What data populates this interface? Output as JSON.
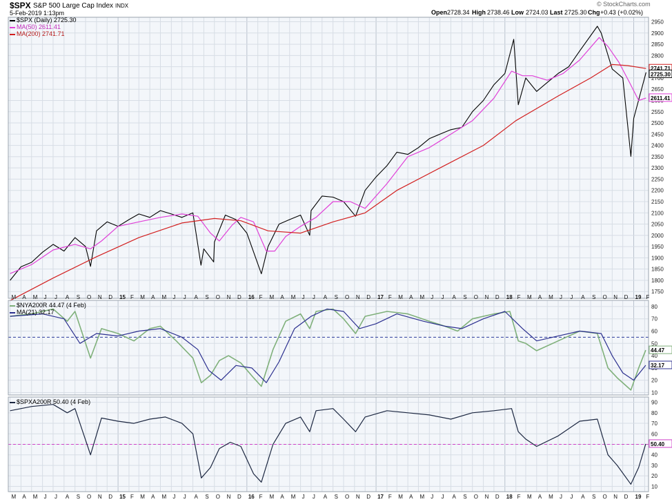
{
  "header": {
    "symbol": "$SPX",
    "name": "S&P 500 Large Cap Index",
    "exchange": "INDX",
    "date": "5-Feb-2019 1:13pm",
    "open_label": "Open",
    "open": "2728.34",
    "high_label": "High",
    "high": "2738.46",
    "low_label": "Low",
    "low": "2724.03",
    "last_label": "Last",
    "last": "2725.30",
    "chg_label": "Chg",
    "chg": "+0.43 (+0.02%)",
    "watermark": "© StockCharts.com"
  },
  "colors": {
    "price": "#000000",
    "ma50": "#e040d8",
    "ma200": "#d21f1f",
    "nya": "#7fb07a",
    "nya_ma": "#2b2f8f",
    "spxa": "#1b2640",
    "grid": "#d7dde5",
    "frame": "#9aa3ad",
    "panel_bg": "#f3f6fa"
  },
  "chart_data": [
    {
      "type": "line",
      "legend": [
        "$SPX (Daily) 2725.30",
        "MA(50) 2611.41",
        "MA(200) 2741.71"
      ],
      "legend_position": "top-left",
      "x_ticks": [
        "M",
        "A",
        "M",
        "J",
        "J",
        "A",
        "S",
        "O",
        "N",
        "D",
        "15",
        "F",
        "M",
        "A",
        "M",
        "J",
        "J",
        "A",
        "S",
        "O",
        "N",
        "D",
        "16",
        "F",
        "M",
        "A",
        "M",
        "J",
        "J",
        "A",
        "S",
        "O",
        "N",
        "D",
        "17",
        "F",
        "M",
        "A",
        "M",
        "J",
        "J",
        "A",
        "S",
        "O",
        "N",
        "D",
        "18",
        "F",
        "M",
        "A",
        "M",
        "J",
        "J",
        "A",
        "S",
        "O",
        "N",
        "D",
        "19",
        "F"
      ],
      "y_ticks": [
        1750,
        1800,
        1850,
        1900,
        1950,
        2000,
        2050,
        2100,
        2150,
        2200,
        2250,
        2300,
        2350,
        2400,
        2450,
        2500,
        2550,
        2600,
        2650,
        2700,
        2750,
        2800,
        2850,
        2900,
        2950
      ],
      "ylim": [
        1720,
        2970
      ],
      "grid": true,
      "value_labels": [
        "2741.71",
        "2725.30",
        "2611.41"
      ],
      "series": [
        {
          "name": "$SPX (Daily)",
          "x": [
            "2014-03-01",
            "2014-04-01",
            "2014-05-01",
            "2014-06-01",
            "2014-07-01",
            "2014-08-01",
            "2014-09-01",
            "2014-10-01",
            "2014-10-15",
            "2014-11-01",
            "2014-12-01",
            "2015-01-01",
            "2015-02-01",
            "2015-03-01",
            "2015-04-01",
            "2015-05-01",
            "2015-06-01",
            "2015-07-01",
            "2015-08-01",
            "2015-08-24",
            "2015-09-01",
            "2015-09-29",
            "2015-10-01",
            "2015-11-01",
            "2015-12-01",
            "2016-01-01",
            "2016-02-11",
            "2016-03-01",
            "2016-04-01",
            "2016-05-01",
            "2016-06-01",
            "2016-06-27",
            "2016-07-01",
            "2016-08-01",
            "2016-09-01",
            "2016-10-01",
            "2016-11-04",
            "2016-12-01",
            "2017-01-01",
            "2017-02-01",
            "2017-03-01",
            "2017-04-01",
            "2017-05-01",
            "2017-06-01",
            "2017-07-01",
            "2017-08-01",
            "2017-09-01",
            "2017-10-01",
            "2017-11-01",
            "2017-12-01",
            "2018-01-01",
            "2018-01-26",
            "2018-02-08",
            "2018-03-01",
            "2018-04-01",
            "2018-05-01",
            "2018-06-01",
            "2018-07-01",
            "2018-08-01",
            "2018-09-20",
            "2018-10-01",
            "2018-11-01",
            "2018-12-01",
            "2018-12-24",
            "2019-01-01",
            "2019-02-05"
          ],
          "y": [
            1800,
            1860,
            1880,
            1925,
            1960,
            1930,
            1990,
            1950,
            1862,
            2020,
            2060,
            2040,
            2070,
            2095,
            2080,
            2110,
            2095,
            2080,
            2100,
            1867,
            1940,
            1882,
            1970,
            2090,
            2070,
            2010,
            1829,
            1950,
            2050,
            2070,
            2090,
            2000,
            2110,
            2175,
            2170,
            2150,
            2085,
            2200,
            2260,
            2310,
            2370,
            2360,
            2390,
            2430,
            2450,
            2470,
            2480,
            2550,
            2600,
            2670,
            2720,
            2872,
            2581,
            2700,
            2640,
            2680,
            2720,
            2750,
            2820,
            2930,
            2900,
            2740,
            2700,
            2351,
            2520,
            2725
          ]
        },
        {
          "name": "MA(50)",
          "x": [
            "2014-03-01",
            "2014-05-01",
            "2014-07-01",
            "2014-09-01",
            "2014-10-15",
            "2014-11-15",
            "2015-01-01",
            "2015-03-01",
            "2015-05-01",
            "2015-07-01",
            "2015-08-15",
            "2015-09-20",
            "2015-10-15",
            "2015-11-20",
            "2015-12-15",
            "2016-01-20",
            "2016-02-25",
            "2016-03-20",
            "2016-04-20",
            "2016-06-01",
            "2016-07-15",
            "2016-09-01",
            "2016-10-20",
            "2016-12-01",
            "2017-02-01",
            "2017-04-01",
            "2017-06-01",
            "2017-08-01",
            "2017-10-01",
            "2017-12-01",
            "2018-01-20",
            "2018-02-20",
            "2018-03-20",
            "2018-05-01",
            "2018-06-15",
            "2018-08-01",
            "2018-09-25",
            "2018-10-20",
            "2018-11-20",
            "2018-12-20",
            "2019-01-15",
            "2019-02-05"
          ],
          "y": [
            1830,
            1870,
            1935,
            1960,
            1940,
            1975,
            2040,
            2060,
            2080,
            2095,
            2085,
            2010,
            1975,
            2045,
            2080,
            2060,
            1930,
            1930,
            1995,
            2040,
            2080,
            2150,
            2150,
            2120,
            2230,
            2350,
            2390,
            2450,
            2510,
            2610,
            2730,
            2710,
            2710,
            2690,
            2720,
            2780,
            2880,
            2840,
            2770,
            2680,
            2600,
            2611
          ]
        },
        {
          "name": "MA(200)",
          "x": [
            "2014-03-01",
            "2014-07-01",
            "2014-11-01",
            "2015-03-01",
            "2015-07-01",
            "2015-10-01",
            "2015-12-15",
            "2016-03-01",
            "2016-06-01",
            "2016-09-01",
            "2016-12-01",
            "2017-03-01",
            "2017-07-01",
            "2017-11-01",
            "2018-02-01",
            "2018-06-01",
            "2018-09-01",
            "2018-11-01",
            "2018-12-15",
            "2019-02-05"
          ],
          "y": [
            1710,
            1810,
            1905,
            1990,
            2055,
            2075,
            2065,
            2020,
            2010,
            2060,
            2100,
            2200,
            2300,
            2400,
            2510,
            2620,
            2700,
            2760,
            2755,
            2742
          ]
        }
      ]
    },
    {
      "type": "line",
      "legend": [
        "$NYA200R 44.47 (4 Feb)",
        "MA(21) 32.17"
      ],
      "legend_position": "top-left",
      "y_ticks": [
        10,
        20,
        30,
        40,
        50,
        60,
        70,
        80
      ],
      "ylim": [
        8,
        85
      ],
      "reference_line": 55,
      "value_labels": [
        "44.47",
        "32.17"
      ],
      "series": [
        {
          "name": "$NYA200R",
          "x": [
            "2014-03-01",
            "2014-05-01",
            "2014-07-01",
            "2014-08-10",
            "2014-09-01",
            "2014-10-15",
            "2014-11-15",
            "2015-01-01",
            "2015-02-15",
            "2015-04-01",
            "2015-05-01",
            "2015-06-15",
            "2015-08-01",
            "2015-08-25",
            "2015-09-20",
            "2015-10-15",
            "2015-11-10",
            "2015-12-15",
            "2016-01-20",
            "2016-02-11",
            "2016-03-15",
            "2016-04-20",
            "2016-06-01",
            "2016-06-27",
            "2016-07-15",
            "2016-09-01",
            "2016-10-01",
            "2016-11-04",
            "2016-12-01",
            "2017-02-01",
            "2017-04-01",
            "2017-06-01",
            "2017-07-15",
            "2017-08-20",
            "2017-10-01",
            "2017-12-01",
            "2018-01-15",
            "2018-02-08",
            "2018-03-01",
            "2018-04-01",
            "2018-06-01",
            "2018-08-01",
            "2018-09-20",
            "2018-10-20",
            "2018-11-15",
            "2018-12-24",
            "2019-01-15",
            "2019-02-04"
          ],
          "y": [
            72,
            74,
            78,
            68,
            76,
            38,
            62,
            58,
            52,
            62,
            64,
            52,
            38,
            18,
            24,
            36,
            40,
            34,
            22,
            15,
            45,
            68,
            74,
            62,
            76,
            78,
            70,
            58,
            72,
            76,
            74,
            68,
            64,
            60,
            70,
            74,
            76,
            52,
            50,
            44,
            52,
            60,
            58,
            30,
            22,
            12,
            30,
            44.47
          ]
        },
        {
          "name": "MA(21)",
          "x": [
            "2014-03-01",
            "2014-06-01",
            "2014-08-01",
            "2014-09-15",
            "2014-11-01",
            "2015-01-01",
            "2015-03-01",
            "2015-05-01",
            "2015-07-01",
            "2015-08-15",
            "2015-09-15",
            "2015-10-20",
            "2015-12-01",
            "2016-01-15",
            "2016-02-25",
            "2016-04-01",
            "2016-05-15",
            "2016-07-01",
            "2016-08-15",
            "2016-10-01",
            "2016-11-15",
            "2017-01-01",
            "2017-03-01",
            "2017-05-15",
            "2017-07-15",
            "2017-09-01",
            "2017-11-01",
            "2018-01-01",
            "2018-02-20",
            "2018-04-01",
            "2018-06-01",
            "2018-08-01",
            "2018-10-01",
            "2018-11-01",
            "2018-12-01",
            "2019-01-01",
            "2019-02-04"
          ],
          "y": [
            72,
            74,
            70,
            50,
            58,
            56,
            60,
            62,
            55,
            45,
            28,
            20,
            32,
            30,
            18,
            35,
            62,
            72,
            78,
            76,
            62,
            66,
            74,
            68,
            64,
            62,
            70,
            76,
            62,
            52,
            56,
            60,
            58,
            40,
            26,
            20,
            32.17
          ]
        }
      ]
    },
    {
      "type": "line",
      "legend": [
        "$SPXA200R 50.40 (4 Feb)"
      ],
      "legend_position": "top-left",
      "y_ticks": [
        10,
        20,
        30,
        40,
        50,
        60,
        70,
        80,
        90
      ],
      "ylim": [
        5,
        95
      ],
      "reference_line": 50,
      "value_labels": [
        "50.40"
      ],
      "series": [
        {
          "name": "$SPXA200R",
          "x": [
            "2014-03-01",
            "2014-05-01",
            "2014-07-01",
            "2014-08-10",
            "2014-09-01",
            "2014-10-15",
            "2014-11-15",
            "2015-01-01",
            "2015-02-15",
            "2015-04-01",
            "2015-05-15",
            "2015-07-01",
            "2015-08-01",
            "2015-08-25",
            "2015-09-20",
            "2015-10-15",
            "2015-11-15",
            "2015-12-15",
            "2016-01-20",
            "2016-02-11",
            "2016-03-15",
            "2016-04-20",
            "2016-06-01",
            "2016-06-27",
            "2016-07-15",
            "2016-09-01",
            "2016-10-01",
            "2016-11-04",
            "2016-12-01",
            "2017-02-01",
            "2017-04-01",
            "2017-06-01",
            "2017-08-01",
            "2017-10-01",
            "2017-12-01",
            "2018-01-20",
            "2018-02-08",
            "2018-03-01",
            "2018-04-01",
            "2018-06-01",
            "2018-08-01",
            "2018-09-20",
            "2018-10-20",
            "2018-11-15",
            "2018-12-24",
            "2019-01-15",
            "2019-02-04"
          ],
          "y": [
            82,
            86,
            88,
            80,
            84,
            40,
            75,
            72,
            70,
            74,
            76,
            70,
            60,
            18,
            28,
            46,
            52,
            48,
            22,
            14,
            50,
            70,
            76,
            62,
            82,
            84,
            74,
            62,
            76,
            82,
            80,
            78,
            74,
            80,
            82,
            84,
            62,
            55,
            48,
            58,
            72,
            74,
            40,
            30,
            12,
            28,
            50.4
          ]
        }
      ]
    }
  ]
}
